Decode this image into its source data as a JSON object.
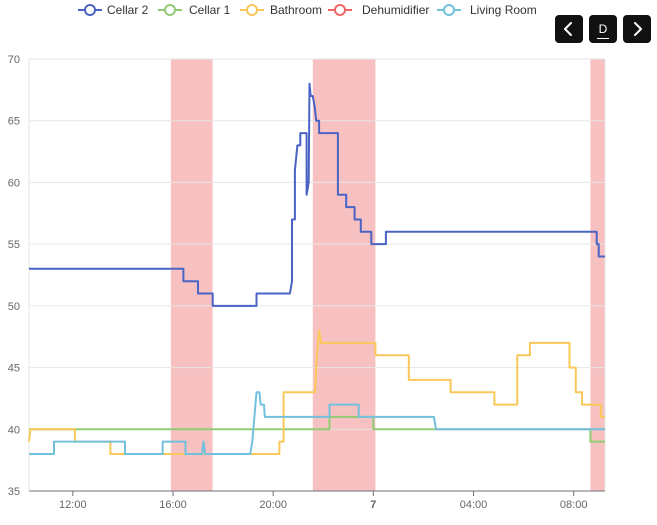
{
  "chart_data": {
    "type": "line",
    "x_unit": "time",
    "x_range": [
      "2000-01-06T10:15",
      "2000-01-07T09:15"
    ],
    "ylim": [
      35,
      70
    ],
    "y_ticks": [
      35,
      40,
      45,
      50,
      55,
      60,
      65,
      70
    ],
    "x_ticks": [
      {
        "t": "2000-01-06T12:00",
        "label": "12:00",
        "bold": false
      },
      {
        "t": "2000-01-06T16:00",
        "label": "16:00",
        "bold": false
      },
      {
        "t": "2000-01-06T20:00",
        "label": "20:00",
        "bold": false
      },
      {
        "t": "2000-01-07T00:00",
        "label": "7",
        "bold": true
      },
      {
        "t": "2000-01-07T04:00",
        "label": "04:00",
        "bold": false
      },
      {
        "t": "2000-01-07T08:00",
        "label": "08:00",
        "bold": false
      }
    ],
    "grid": true,
    "legend_position": "top-center",
    "title": "",
    "xlabel": "",
    "ylabel": "",
    "dehumidifier_on_periods": [
      [
        "2000-01-06T15:55",
        "2000-01-06T17:35"
      ],
      [
        "2000-01-06T21:35",
        "2000-01-07T00:05"
      ],
      [
        "2000-01-07T08:40",
        "2000-01-07T09:15"
      ]
    ],
    "series": [
      {
        "name": "Cellar 2",
        "color": "#4a63c4",
        "points": [
          [
            "2000-01-06T10:15",
            53
          ],
          [
            "2000-01-06T16:25",
            53
          ],
          [
            "2000-01-06T16:25",
            52
          ],
          [
            "2000-01-06T17:00",
            52
          ],
          [
            "2000-01-06T17:00",
            51
          ],
          [
            "2000-01-06T17:35",
            51
          ],
          [
            "2000-01-06T17:35",
            50
          ],
          [
            "2000-01-06T19:20",
            50
          ],
          [
            "2000-01-06T19:20",
            51
          ],
          [
            "2000-01-06T20:40",
            51
          ],
          [
            "2000-01-06T20:45",
            52
          ],
          [
            "2000-01-06T20:45",
            57
          ],
          [
            "2000-01-06T20:52",
            57
          ],
          [
            "2000-01-06T20:52",
            61
          ],
          [
            "2000-01-06T20:58",
            63
          ],
          [
            "2000-01-06T21:05",
            63
          ],
          [
            "2000-01-06T21:05",
            64
          ],
          [
            "2000-01-06T21:20",
            64
          ],
          [
            "2000-01-06T21:20",
            59
          ],
          [
            "2000-01-06T21:25",
            60
          ],
          [
            "2000-01-06T21:27",
            68
          ],
          [
            "2000-01-06T21:30",
            67
          ],
          [
            "2000-01-06T21:35",
            67
          ],
          [
            "2000-01-06T21:40",
            66
          ],
          [
            "2000-01-06T21:43",
            65
          ],
          [
            "2000-01-06T21:50",
            65
          ],
          [
            "2000-01-06T21:50",
            64
          ],
          [
            "2000-01-06T22:35",
            64
          ],
          [
            "2000-01-06T22:35",
            59
          ],
          [
            "2000-01-06T22:55",
            59
          ],
          [
            "2000-01-06T22:55",
            58
          ],
          [
            "2000-01-06T23:15",
            58
          ],
          [
            "2000-01-06T23:15",
            57
          ],
          [
            "2000-01-06T23:30",
            57
          ],
          [
            "2000-01-06T23:30",
            56
          ],
          [
            "2000-01-06T23:55",
            56
          ],
          [
            "2000-01-06T23:55",
            55
          ],
          [
            "2000-01-07T00:30",
            55
          ],
          [
            "2000-01-07T00:30",
            56
          ],
          [
            "2000-01-07T08:55",
            56
          ],
          [
            "2000-01-07T08:55",
            55
          ],
          [
            "2000-01-07T09:00",
            55
          ],
          [
            "2000-01-07T09:00",
            54
          ],
          [
            "2000-01-07T09:15",
            54
          ]
        ]
      },
      {
        "name": "Cellar 1",
        "color": "#91cc75",
        "points": [
          [
            "2000-01-06T10:15",
            40
          ],
          [
            "2000-01-06T22:15",
            40
          ],
          [
            "2000-01-06T22:15",
            41
          ],
          [
            "2000-01-06T24:00",
            41
          ],
          [
            "2000-01-06T24:00",
            40
          ],
          [
            "2000-01-07T08:40",
            40
          ],
          [
            "2000-01-07T08:40",
            39
          ],
          [
            "2000-01-07T09:15",
            39
          ]
        ]
      },
      {
        "name": "Bathroom",
        "color": "#fac858",
        "points": [
          [
            "2000-01-06T10:15",
            39
          ],
          [
            "2000-01-06T10:18",
            40
          ],
          [
            "2000-01-06T12:05",
            40
          ],
          [
            "2000-01-06T12:05",
            39
          ],
          [
            "2000-01-06T13:30",
            39
          ],
          [
            "2000-01-06T13:30",
            38
          ],
          [
            "2000-01-06T20:15",
            38
          ],
          [
            "2000-01-06T20:15",
            39
          ],
          [
            "2000-01-06T20:25",
            39
          ],
          [
            "2000-01-06T20:25",
            43
          ],
          [
            "2000-01-06T21:40",
            43
          ],
          [
            "2000-01-06T21:45",
            46
          ],
          [
            "2000-01-06T21:50",
            48
          ],
          [
            "2000-01-06T21:55",
            47
          ],
          [
            "2000-01-07T00:05",
            47
          ],
          [
            "2000-01-07T00:05",
            46
          ],
          [
            "2000-01-07T01:25",
            46
          ],
          [
            "2000-01-07T01:25",
            44
          ],
          [
            "2000-01-07T03:05",
            44
          ],
          [
            "2000-01-07T03:05",
            43
          ],
          [
            "2000-01-07T04:50",
            43
          ],
          [
            "2000-01-07T04:50",
            42
          ],
          [
            "2000-01-07T05:45",
            42
          ],
          [
            "2000-01-07T05:45",
            46
          ],
          [
            "2000-01-07T06:15",
            46
          ],
          [
            "2000-01-07T06:15",
            47
          ],
          [
            "2000-01-07T07:50",
            47
          ],
          [
            "2000-01-07T07:50",
            45
          ],
          [
            "2000-01-07T08:05",
            45
          ],
          [
            "2000-01-07T08:05",
            43
          ],
          [
            "2000-01-07T08:20",
            43
          ],
          [
            "2000-01-07T08:20",
            42
          ],
          [
            "2000-01-07T09:05",
            42
          ],
          [
            "2000-01-07T09:05",
            41
          ],
          [
            "2000-01-07T09:15",
            41
          ]
        ]
      },
      {
        "name": "Dehumidifier",
        "color": "#ee6666",
        "points": []
      },
      {
        "name": "Living Room",
        "color": "#73c0de",
        "points": [
          [
            "2000-01-06T10:15",
            38
          ],
          [
            "2000-01-06T11:15",
            38
          ],
          [
            "2000-01-06T11:15",
            39
          ],
          [
            "2000-01-06T14:05",
            39
          ],
          [
            "2000-01-06T14:05",
            38
          ],
          [
            "2000-01-06T15:35",
            38
          ],
          [
            "2000-01-06T15:35",
            39
          ],
          [
            "2000-01-06T16:30",
            39
          ],
          [
            "2000-01-06T16:30",
            38
          ],
          [
            "2000-01-06T17:10",
            38
          ],
          [
            "2000-01-06T17:13",
            39
          ],
          [
            "2000-01-06T17:17",
            38
          ],
          [
            "2000-01-06T19:05",
            38
          ],
          [
            "2000-01-06T19:10",
            39
          ],
          [
            "2000-01-06T19:15",
            41
          ],
          [
            "2000-01-06T19:20",
            43
          ],
          [
            "2000-01-06T19:27",
            43
          ],
          [
            "2000-01-06T19:30",
            42
          ],
          [
            "2000-01-06T19:38",
            42
          ],
          [
            "2000-01-06T19:40",
            41
          ],
          [
            "2000-01-06T22:15",
            41
          ],
          [
            "2000-01-06T22:15",
            42
          ],
          [
            "2000-01-06T23:25",
            42
          ],
          [
            "2000-01-06T23:25",
            41
          ],
          [
            "2000-01-07T02:25",
            41
          ],
          [
            "2000-01-07T02:30",
            40
          ],
          [
            "2000-01-07T09:15",
            40
          ]
        ]
      }
    ]
  },
  "legend": {
    "items": [
      {
        "label": "Cellar 2",
        "color": "#4a63c4",
        "icon": "empty-circle-line"
      },
      {
        "label": "Cellar 1",
        "color": "#91cc75",
        "icon": "empty-circle-line"
      },
      {
        "label": "Bathroom",
        "color": "#fac858",
        "icon": "empty-circle-line"
      },
      {
        "label": "Dehumidifier",
        "color": "#ee6666",
        "icon": "empty-circle-line"
      },
      {
        "label": "Living Room",
        "color": "#73c0de",
        "icon": "empty-circle-line"
      }
    ]
  },
  "toolbar": {
    "prev_icon": "chevron-left-icon",
    "period_label": "D",
    "next_icon": "chevron-right-icon"
  },
  "colors": {
    "band": "#f4a6a6",
    "grid": "#e6e6e6",
    "axis": "#6e7079"
  }
}
